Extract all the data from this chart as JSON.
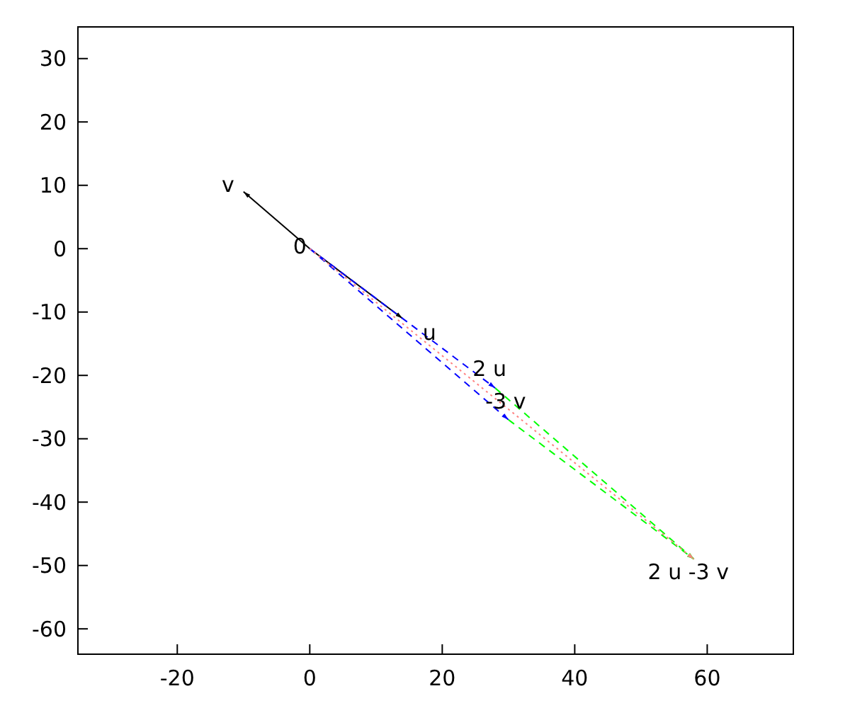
{
  "chart_data": {
    "type": "line",
    "xlim": [
      -35,
      73
    ],
    "ylim": [
      -64,
      35
    ],
    "xticks": [
      -20,
      0,
      20,
      40,
      60
    ],
    "yticks": [
      -60,
      -50,
      -40,
      -30,
      -20,
      -10,
      0,
      10,
      20,
      30
    ],
    "grid": false,
    "series": [
      {
        "color": "#000000",
        "line_style": "solid",
        "x": [
          0,
          -10
        ],
        "values": [
          0,
          9
        ]
      },
      {
        "color": "#000000",
        "line_style": "solid",
        "x": [
          0,
          14
        ],
        "values": [
          0,
          -11
        ]
      },
      {
        "color": "#0000ff",
        "line_style": "dashed",
        "x": [
          0,
          28
        ],
        "values": [
          0,
          -22
        ]
      },
      {
        "color": "#0000ff",
        "line_style": "dashed",
        "x": [
          0,
          30
        ],
        "values": [
          0,
          -27
        ]
      },
      {
        "color": "#00ff00",
        "line_style": "dashed",
        "x": [
          28,
          58
        ],
        "values": [
          -22,
          -49
        ]
      },
      {
        "color": "#00ff00",
        "line_style": "dashed",
        "x": [
          30,
          58
        ],
        "values": [
          -27,
          -49
        ]
      },
      {
        "color": "#ff8080",
        "line_style": "dotted",
        "x": [
          0,
          58
        ],
        "values": [
          0,
          -49
        ]
      }
    ],
    "annotations": [
      {
        "text": "v",
        "x": -10,
        "y": 9
      },
      {
        "text": "0",
        "x": 0,
        "y": 0
      },
      {
        "text": "u",
        "x": 14,
        "y": -11
      },
      {
        "text": "2 u",
        "x": 28,
        "y": -22
      },
      {
        "text": "-3 v",
        "x": 30,
        "y": -27
      },
      {
        "text": "2 u -3 v",
        "x": 58,
        "y": -49
      }
    ]
  }
}
